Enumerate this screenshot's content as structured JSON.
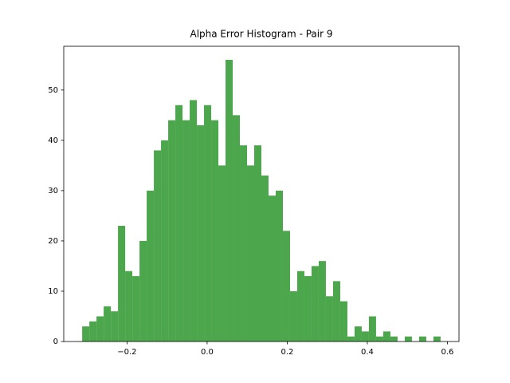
{
  "chart_data": {
    "type": "histogram",
    "title": "Alpha Error Histogram - Pair 9",
    "bins": [
      -0.312,
      -0.2941,
      -0.2762,
      -0.2583,
      -0.2404,
      -0.2225,
      -0.2046,
      -0.1867,
      -0.1688,
      -0.1509,
      -0.133,
      -0.1151,
      -0.0972,
      -0.0793,
      -0.0614,
      -0.0435,
      -0.0256,
      -0.0077,
      0.0102,
      0.0281,
      0.046,
      0.0639,
      0.0818,
      0.0997,
      0.1176,
      0.1355,
      0.1534,
      0.1713,
      0.1892,
      0.2071,
      0.225,
      0.2429,
      0.2608,
      0.2787,
      0.2966,
      0.3145,
      0.3324,
      0.3503,
      0.3682,
      0.3861,
      0.404,
      0.4219,
      0.4398,
      0.4577,
      0.4756,
      0.4935,
      0.5114,
      0.5293,
      0.5472,
      0.5651,
      0.583
    ],
    "counts": [
      3,
      4,
      5,
      7,
      6,
      23,
      14,
      13,
      20,
      30,
      38,
      40,
      44,
      47,
      44,
      48,
      43,
      47,
      44,
      35,
      56,
      45,
      39,
      35,
      39,
      33,
      29,
      30,
      22,
      10,
      14,
      13,
      15,
      16,
      9,
      12,
      8,
      1,
      3,
      2,
      5,
      1,
      2,
      1,
      0,
      1,
      0,
      1,
      0,
      1
    ],
    "color": "#4ca64c",
    "xlim": [
      -0.358,
      0.629
    ],
    "xticks": [
      {
        "value": -0.2,
        "label": "−0.2"
      },
      {
        "value": 0.0,
        "label": "0.0"
      },
      0.2,
      0.4,
      0.6
    ],
    "ylim": [
      0,
      58.7
    ],
    "yticks": [
      0,
      10,
      20,
      30,
      40,
      50
    ]
  }
}
